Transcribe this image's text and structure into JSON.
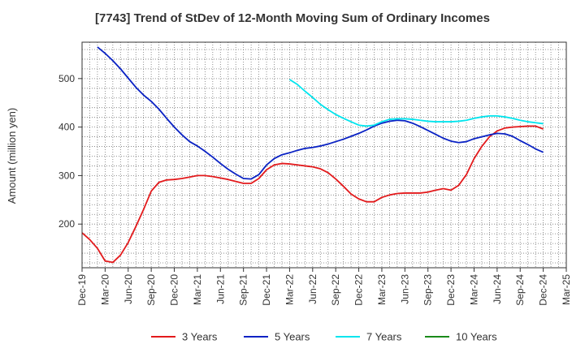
{
  "chart_data": {
    "type": "line",
    "title": "[7743]  Trend of StDev of 12-Month Moving Sum of Ordinary Incomes",
    "xlabel": "",
    "ylabel": "Amount (million yen)",
    "ylim": [
      110,
      575
    ],
    "yticks": [
      200,
      300,
      400,
      500
    ],
    "x_tick_labels": [
      "Dec-19",
      "Mar-20",
      "Jun-20",
      "Sep-20",
      "Dec-20",
      "Mar-21",
      "Jun-21",
      "Sep-21",
      "Dec-21",
      "Mar-22",
      "Jun-22",
      "Sep-22",
      "Dec-22",
      "Mar-23",
      "Jun-23",
      "Sep-23",
      "Dec-23",
      "Mar-24",
      "Jun-24",
      "Sep-24",
      "Dec-24",
      "Mar-25"
    ],
    "grid": true,
    "legend_position": "bottom",
    "series": [
      {
        "name": "3 Years",
        "color": "#e31a1c",
        "points": [
          [
            "Dec-19",
            182
          ],
          [
            "Jan-20",
            168
          ],
          [
            "Feb-20",
            150
          ],
          [
            "Mar-20",
            124
          ],
          [
            "Apr-20",
            121
          ],
          [
            "May-20",
            136
          ],
          [
            "Jun-20",
            162
          ],
          [
            "Jul-20",
            195
          ],
          [
            "Aug-20",
            230
          ],
          [
            "Sep-20",
            268
          ],
          [
            "Oct-20",
            286
          ],
          [
            "Nov-20",
            291
          ],
          [
            "Dec-20",
            292
          ],
          [
            "Jan-21",
            294
          ],
          [
            "Feb-21",
            297
          ],
          [
            "Mar-21",
            300
          ],
          [
            "Apr-21",
            300
          ],
          [
            "May-21",
            298
          ],
          [
            "Jun-21",
            295
          ],
          [
            "Jul-21",
            292
          ],
          [
            "Aug-21",
            288
          ],
          [
            "Sep-21",
            284
          ],
          [
            "Oct-21",
            284
          ],
          [
            "Nov-21",
            294
          ],
          [
            "Dec-21",
            312
          ],
          [
            "Jan-22",
            322
          ],
          [
            "Feb-22",
            325
          ],
          [
            "Mar-22",
            324
          ],
          [
            "Apr-22",
            322
          ],
          [
            "May-22",
            320
          ],
          [
            "Jun-22",
            318
          ],
          [
            "Jul-22",
            314
          ],
          [
            "Aug-22",
            306
          ],
          [
            "Sep-22",
            293
          ],
          [
            "Oct-22",
            278
          ],
          [
            "Nov-22",
            262
          ],
          [
            "Dec-22",
            252
          ],
          [
            "Jan-23",
            246
          ],
          [
            "Feb-23",
            246
          ],
          [
            "Mar-23",
            255
          ],
          [
            "Apr-23",
            260
          ],
          [
            "May-23",
            263
          ],
          [
            "Jun-23",
            264
          ],
          [
            "Jul-23",
            264
          ],
          [
            "Aug-23",
            264
          ],
          [
            "Sep-23",
            266
          ],
          [
            "Oct-23",
            270
          ],
          [
            "Nov-23",
            273
          ],
          [
            "Dec-23",
            270
          ],
          [
            "Jan-24",
            280
          ],
          [
            "Feb-24",
            302
          ],
          [
            "Mar-24",
            335
          ],
          [
            "Apr-24",
            360
          ],
          [
            "May-24",
            380
          ],
          [
            "Jun-24",
            392
          ],
          [
            "Jul-24",
            398
          ],
          [
            "Aug-24",
            400
          ],
          [
            "Sep-24",
            401
          ],
          [
            "Oct-24",
            402
          ],
          [
            "Nov-24",
            402
          ],
          [
            "Dec-24",
            396
          ]
        ]
      },
      {
        "name": "5 Years",
        "color": "#0a22c4",
        "points": [
          [
            "Feb-20",
            565
          ],
          [
            "Mar-20",
            552
          ],
          [
            "Apr-20",
            537
          ],
          [
            "May-20",
            520
          ],
          [
            "Jun-20",
            501
          ],
          [
            "Jul-20",
            482
          ],
          [
            "Aug-20",
            466
          ],
          [
            "Sep-20",
            453
          ],
          [
            "Oct-20",
            437
          ],
          [
            "Nov-20",
            418
          ],
          [
            "Dec-20",
            400
          ],
          [
            "Jan-21",
            384
          ],
          [
            "Feb-21",
            370
          ],
          [
            "Mar-21",
            361
          ],
          [
            "Apr-21",
            350
          ],
          [
            "May-21",
            338
          ],
          [
            "Jun-21",
            325
          ],
          [
            "Jul-21",
            313
          ],
          [
            "Aug-21",
            303
          ],
          [
            "Sep-21",
            294
          ],
          [
            "Oct-21",
            293
          ],
          [
            "Nov-21",
            302
          ],
          [
            "Dec-21",
            322
          ],
          [
            "Jan-22",
            335
          ],
          [
            "Feb-22",
            343
          ],
          [
            "Mar-22",
            347
          ],
          [
            "Apr-22",
            352
          ],
          [
            "May-22",
            356
          ],
          [
            "Jun-22",
            358
          ],
          [
            "Jul-22",
            361
          ],
          [
            "Aug-22",
            365
          ],
          [
            "Sep-22",
            370
          ],
          [
            "Oct-22",
            375
          ],
          [
            "Nov-22",
            381
          ],
          [
            "Dec-22",
            387
          ],
          [
            "Jan-23",
            394
          ],
          [
            "Feb-23",
            402
          ],
          [
            "Mar-23",
            408
          ],
          [
            "Apr-23",
            412
          ],
          [
            "May-23",
            414
          ],
          [
            "Jun-23",
            413
          ],
          [
            "Jul-23",
            408
          ],
          [
            "Aug-23",
            401
          ],
          [
            "Sep-23",
            393
          ],
          [
            "Oct-23",
            385
          ],
          [
            "Nov-23",
            377
          ],
          [
            "Dec-23",
            371
          ],
          [
            "Jan-24",
            368
          ],
          [
            "Feb-24",
            370
          ],
          [
            "Mar-24",
            376
          ],
          [
            "Apr-24",
            380
          ],
          [
            "May-24",
            384
          ],
          [
            "Jun-24",
            387
          ],
          [
            "Jul-24",
            386
          ],
          [
            "Aug-24",
            381
          ],
          [
            "Sep-24",
            372
          ],
          [
            "Oct-24",
            364
          ],
          [
            "Nov-24",
            355
          ],
          [
            "Dec-24",
            348
          ]
        ]
      },
      {
        "name": "7 Years",
        "color": "#00e5ee",
        "points": [
          [
            "Mar-22",
            498
          ],
          [
            "Apr-22",
            488
          ],
          [
            "May-22",
            474
          ],
          [
            "Jun-22",
            461
          ],
          [
            "Jul-22",
            447
          ],
          [
            "Aug-22",
            436
          ],
          [
            "Sep-22",
            426
          ],
          [
            "Oct-22",
            418
          ],
          [
            "Nov-22",
            411
          ],
          [
            "Dec-22",
            404
          ],
          [
            "Jan-23",
            402
          ],
          [
            "Feb-23",
            404
          ],
          [
            "Mar-23",
            411
          ],
          [
            "Apr-23",
            416
          ],
          [
            "May-23",
            417
          ],
          [
            "Jun-23",
            417
          ],
          [
            "Jul-23",
            416
          ],
          [
            "Aug-23",
            414
          ],
          [
            "Sep-23",
            412
          ],
          [
            "Oct-23",
            411
          ],
          [
            "Nov-23",
            411
          ],
          [
            "Dec-23",
            411
          ],
          [
            "Jan-24",
            412
          ],
          [
            "Feb-24",
            414
          ],
          [
            "Mar-24",
            418
          ],
          [
            "Apr-24",
            421
          ],
          [
            "May-24",
            423
          ],
          [
            "Jun-24",
            423
          ],
          [
            "Jul-24",
            421
          ],
          [
            "Aug-24",
            418
          ],
          [
            "Sep-24",
            414
          ],
          [
            "Oct-24",
            411
          ],
          [
            "Nov-24",
            409
          ],
          [
            "Dec-24",
            407
          ]
        ]
      },
      {
        "name": "10 Years",
        "color": "#1a8a1a",
        "points": []
      }
    ]
  }
}
